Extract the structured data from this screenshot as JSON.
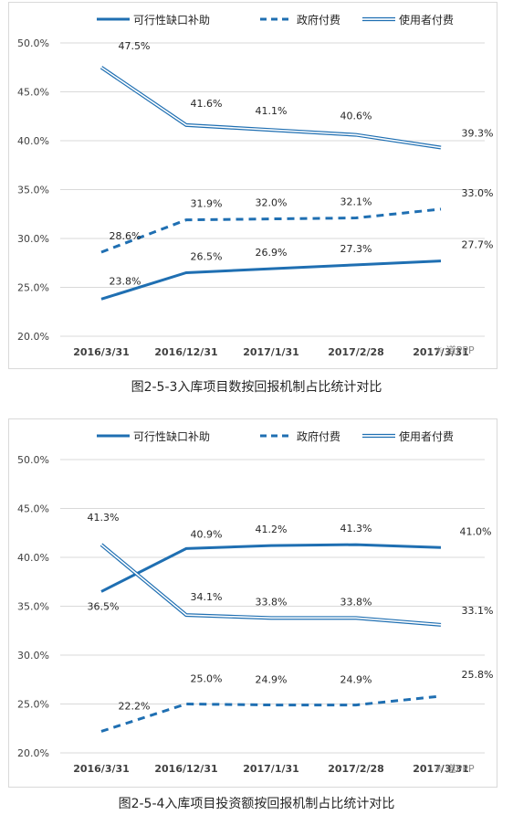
{
  "charts": [
    {
      "caption": "图2-5-3入库项目数按回报机制占比统计对比",
      "watermark": "道PPP",
      "chart_data": {
        "type": "line",
        "categories": [
          "2016/3/31",
          "2016/12/31",
          "2017/1/31",
          "2017/2/28",
          "2017/3/31"
        ],
        "ylim": [
          20,
          50
        ],
        "yticks": [
          "20.0%",
          "25.0%",
          "30.0%",
          "35.0%",
          "40.0%",
          "45.0%",
          "50.0%"
        ],
        "grid": true,
        "legend_position": "top",
        "series": [
          {
            "name": "可行性缺口补助",
            "style": "solid",
            "color": "#1f6fb2",
            "values": [
              23.8,
              26.5,
              26.9,
              27.3,
              27.7
            ],
            "labels": [
              "23.8%",
              "26.5%",
              "26.9%",
              "27.3%",
              "27.7%"
            ]
          },
          {
            "name": "政府付费",
            "style": "dashed",
            "color": "#1f6fb2",
            "values": [
              28.6,
              31.9,
              32.0,
              32.1,
              33.0
            ],
            "labels": [
              "28.6%",
              "31.9%",
              "32.0%",
              "32.1%",
              "33.0%"
            ]
          },
          {
            "name": "使用者付费",
            "style": "double",
            "color": "#1f6fb2",
            "values": [
              47.5,
              41.6,
              41.1,
              40.6,
              39.3
            ],
            "labels": [
              "47.5%",
              "41.6%",
              "41.1%",
              "40.6%",
              "39.3%"
            ]
          }
        ]
      }
    },
    {
      "caption": "图2-5-4入库项目投资额按回报机制占比统计对比",
      "watermark": "道PPP",
      "chart_data": {
        "type": "line",
        "categories": [
          "2016/3/31",
          "2016/12/31",
          "2017/1/31",
          "2017/2/28",
          "2017/3/31"
        ],
        "ylim": [
          20,
          50
        ],
        "yticks": [
          "20.0%",
          "25.0%",
          "30.0%",
          "35.0%",
          "40.0%",
          "45.0%",
          "50.0%"
        ],
        "grid": true,
        "legend_position": "top",
        "series": [
          {
            "name": "可行性缺口补助",
            "style": "solid",
            "color": "#1f6fb2",
            "values": [
              36.5,
              40.9,
              41.2,
              41.3,
              41.0
            ],
            "labels": [
              "36.5%",
              "40.9%",
              "41.2%",
              "41.3%",
              "41.0%"
            ]
          },
          {
            "name": "政府付费",
            "style": "dashed",
            "color": "#1f6fb2",
            "values": [
              22.2,
              25.0,
              24.9,
              24.9,
              25.8
            ],
            "labels": [
              "22.2%",
              "25.0%",
              "24.9%",
              "24.9%",
              "25.8%"
            ]
          },
          {
            "name": "使用者付费",
            "style": "double",
            "color": "#1f6fb2",
            "values": [
              41.3,
              34.1,
              33.8,
              33.8,
              33.1
            ],
            "labels": [
              "41.3%",
              "34.1%",
              "33.8%",
              "33.8%",
              "33.1%"
            ]
          }
        ]
      }
    }
  ]
}
